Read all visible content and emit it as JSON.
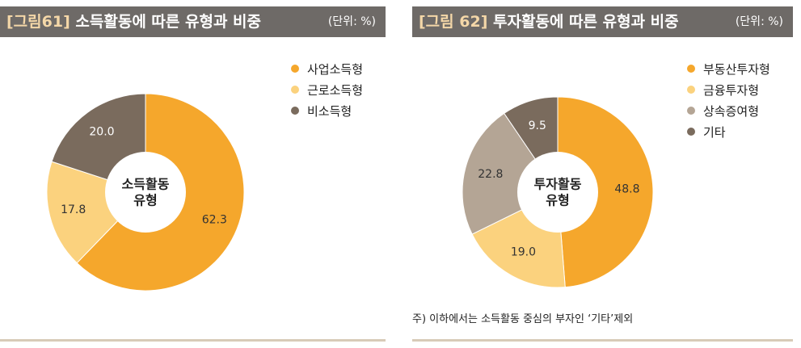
{
  "figures": [
    {
      "id": "fig61",
      "tag": "[그림61]",
      "title": "소득활동에 따른 유형과 비중",
      "unit": "(단위: %)",
      "center_label_lines": [
        "소득활동",
        "유형"
      ],
      "note": ""
    },
    {
      "id": "fig62",
      "tag": "[그림 62]",
      "title": "투자활동에 따른 유형과 비중",
      "unit": "(단위: %)",
      "center_label_lines": [
        "투자활동",
        "유형"
      ],
      "note": "주) 이하에서는 소득활동 중심의 부자인 ‘기타’제외"
    }
  ],
  "chart_data": [
    {
      "type": "pie",
      "donut": true,
      "start": "12 o'clock, clockwise",
      "legend_position": "top-right",
      "categories": [
        "사업소득형",
        "근로소득형",
        "비소득형"
      ],
      "values": [
        62.3,
        17.8,
        20.0
      ],
      "colors": [
        "#f5a72c",
        "#fbd27e",
        "#7a6b5d"
      ],
      "label_colors": [
        "#333333",
        "#333333",
        "#ffffff"
      ]
    },
    {
      "type": "pie",
      "donut": true,
      "start": "12 o'clock, clockwise",
      "legend_position": "top-right",
      "categories": [
        "부동산투자형",
        "금융투자형",
        "상속증여형",
        "기타"
      ],
      "values": [
        48.8,
        19.0,
        22.8,
        9.5
      ],
      "colors": [
        "#f5a72c",
        "#fbd27e",
        "#b4a595",
        "#7a6b5d"
      ],
      "label_colors": [
        "#333333",
        "#333333",
        "#333333",
        "#ffffff"
      ]
    }
  ]
}
